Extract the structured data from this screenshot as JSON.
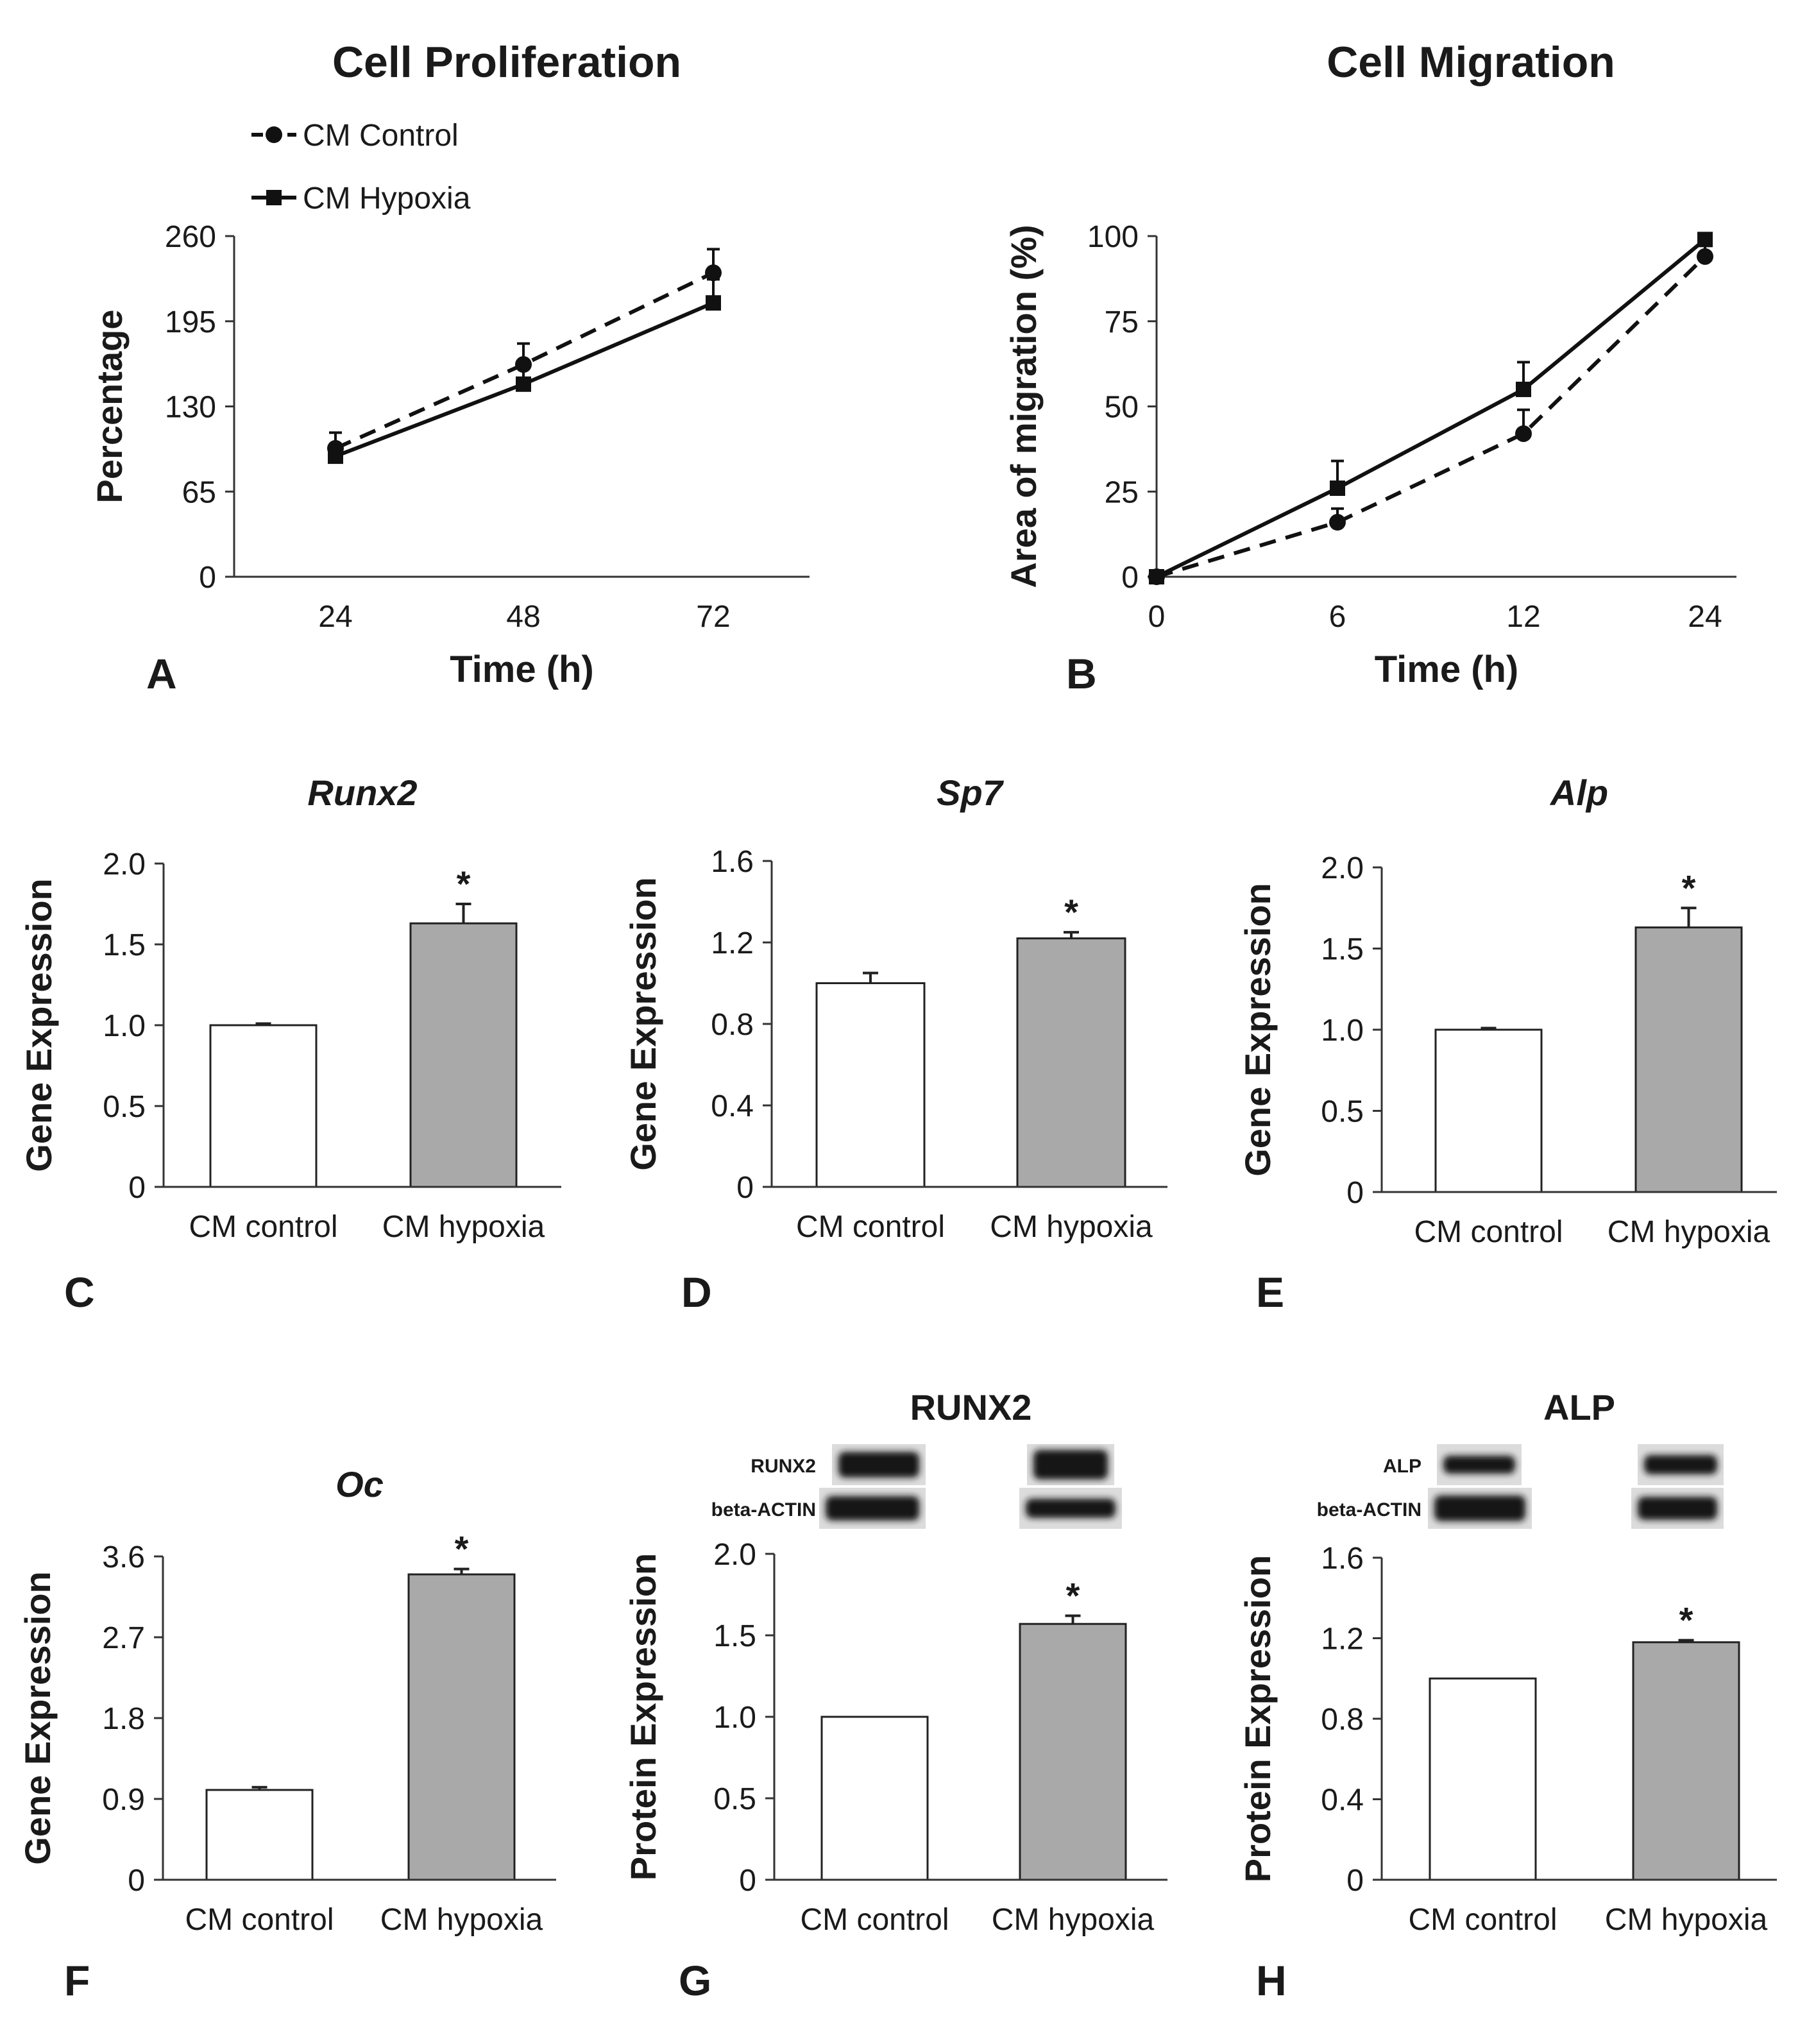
{
  "chart_data": [
    {
      "id": "A",
      "type": "line",
      "title": "Cell Proliferation",
      "xlabel": "Time (h)",
      "ylabel": "Percentage",
      "panel_label": "A",
      "categories": [
        "24",
        "48",
        "72"
      ],
      "yticks": [
        "0",
        "65",
        "130",
        "195",
        "260"
      ],
      "ylim": [
        0,
        260
      ],
      "series": [
        {
          "name": "CM Control",
          "values": [
            98,
            162,
            232
          ],
          "errors": [
            12,
            16,
            18
          ]
        },
        {
          "name": "CM Hypoxia",
          "values": [
            92,
            147,
            209
          ],
          "errors": [
            8,
            12,
            18
          ]
        }
      ]
    },
    {
      "id": "B",
      "type": "line",
      "title": "Cell Migration",
      "xlabel": "Time (h)",
      "ylabel": "Area of migration (%)",
      "panel_label": "B",
      "categories": [
        "0",
        "6",
        "12",
        "24"
      ],
      "yticks": [
        "0",
        "25",
        "50",
        "75",
        "100"
      ],
      "ylim": [
        0,
        100
      ],
      "series": [
        {
          "name": "CM Control",
          "values": [
            0,
            16,
            42,
            94
          ],
          "errors": [
            0,
            4,
            7,
            4
          ]
        },
        {
          "name": "CM Hypoxia",
          "values": [
            0,
            26,
            55,
            99
          ],
          "errors": [
            0,
            8,
            8,
            1
          ]
        }
      ]
    },
    {
      "id": "C",
      "type": "bar",
      "title": "Runx2",
      "ylabel": "Gene Expression",
      "panel_label": "C",
      "categories": [
        "CM control",
        "CM hypoxia"
      ],
      "values": [
        1.0,
        1.63
      ],
      "errors": [
        0.01,
        0.12
      ],
      "ylim": [
        0,
        2.0
      ],
      "yticks": [
        "0",
        "0.5",
        "1.0",
        "1.5",
        "2.0"
      ],
      "significance": [
        "",
        "*"
      ]
    },
    {
      "id": "D",
      "type": "bar",
      "title": "Sp7",
      "ylabel": "Gene Expression",
      "panel_label": "D",
      "categories": [
        "CM control",
        "CM hypoxia"
      ],
      "values": [
        1.0,
        1.22
      ],
      "errors": [
        0.05,
        0.03
      ],
      "ylim": [
        0,
        1.6
      ],
      "yticks": [
        "0",
        "0.4",
        "0.8",
        "1.2",
        "1.6"
      ],
      "significance": [
        "",
        "*"
      ]
    },
    {
      "id": "E",
      "type": "bar",
      "title": "Alp",
      "ylabel": "Gene Expression",
      "panel_label": "E",
      "categories": [
        "CM control",
        "CM hypoxia"
      ],
      "values": [
        1.0,
        1.63
      ],
      "errors": [
        0.01,
        0.12
      ],
      "ylim": [
        0,
        2.0
      ],
      "yticks": [
        "0",
        "0.5",
        "1.0",
        "1.5",
        "2.0"
      ],
      "significance": [
        "",
        "*"
      ]
    },
    {
      "id": "F",
      "type": "bar",
      "title": "Oc",
      "ylabel": "Gene Expression",
      "panel_label": "F",
      "categories": [
        "CM control",
        "CM hypoxia"
      ],
      "values": [
        1.0,
        3.4
      ],
      "errors": [
        0.03,
        0.06
      ],
      "ylim": [
        0,
        3.6
      ],
      "yticks": [
        "0",
        "0.9",
        "1.8",
        "2.7",
        "3.6"
      ],
      "significance": [
        "",
        "*"
      ]
    },
    {
      "id": "G",
      "type": "bar",
      "title": "RUNX2",
      "ylabel": "Protein Expression",
      "panel_label": "G",
      "categories": [
        "CM control",
        "CM hypoxia"
      ],
      "values": [
        1.0,
        1.57
      ],
      "errors": [
        0,
        0.05
      ],
      "ylim": [
        0,
        2.0
      ],
      "yticks": [
        "0",
        "0.5",
        "1.0",
        "1.5",
        "2.0"
      ],
      "significance": [
        "",
        "*"
      ],
      "blot_labels": [
        "RUNX2",
        "beta-ACTIN"
      ]
    },
    {
      "id": "H",
      "type": "bar",
      "title": "ALP",
      "ylabel": "Protein Expression",
      "panel_label": "H",
      "categories": [
        "CM control",
        "CM hypoxia"
      ],
      "values": [
        1.0,
        1.18
      ],
      "errors": [
        0,
        0.01
      ],
      "ylim": [
        0,
        1.6
      ],
      "yticks": [
        "0",
        "0.4",
        "0.8",
        "1.2",
        "1.6"
      ],
      "significance": [
        "",
        "*"
      ],
      "blot_labels": [
        "ALP",
        "beta-ACTIN"
      ]
    }
  ]
}
